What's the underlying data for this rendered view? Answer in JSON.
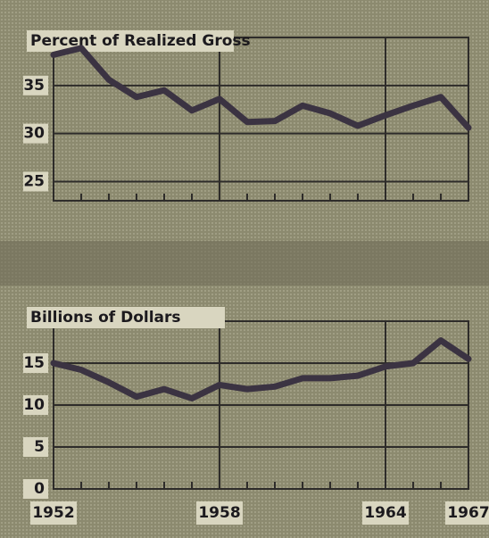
{
  "chart_data": [
    {
      "type": "line",
      "title": "Percent of Realized Gross",
      "x": [
        1952,
        1953,
        1954,
        1955,
        1956,
        1957,
        1958,
        1959,
        1960,
        1961,
        1962,
        1963,
        1964,
        1965,
        1966,
        1967
      ],
      "series": [
        {
          "color": "#3b3342",
          "values": [
            38.2,
            38.9,
            35.6,
            33.8,
            34.5,
            32.4,
            33.6,
            31.2,
            31.3,
            32.9,
            32.1,
            30.8,
            31.9,
            32.9,
            33.8,
            30.6
          ]
        }
      ],
      "xlim": [
        1952,
        1967
      ],
      "xticks": [
        1958,
        1964
      ],
      "xtick_labels": false,
      "ylim": [
        23,
        40
      ],
      "yticks": [
        25,
        30,
        35
      ],
      "grid": true
    },
    {
      "type": "line",
      "title": "Billions of Dollars",
      "x": [
        1952,
        1953,
        1954,
        1955,
        1956,
        1957,
        1958,
        1959,
        1960,
        1961,
        1962,
        1963,
        1964,
        1965,
        1966,
        1967
      ],
      "series": [
        {
          "color": "#3b3342",
          "values": [
            15,
            14.2,
            12.7,
            11,
            11.9,
            10.8,
            12.4,
            11.9,
            12.2,
            13.2,
            13.2,
            13.5,
            14.6,
            15,
            17.7,
            15.5
          ]
        }
      ],
      "xlim": [
        1952,
        1967
      ],
      "xticks": [
        1952,
        1958,
        1964,
        1967
      ],
      "xtick_labels": true,
      "ylim": [
        0,
        20
      ],
      "yticks": [
        0,
        5,
        10,
        15
      ],
      "grid": true
    }
  ]
}
